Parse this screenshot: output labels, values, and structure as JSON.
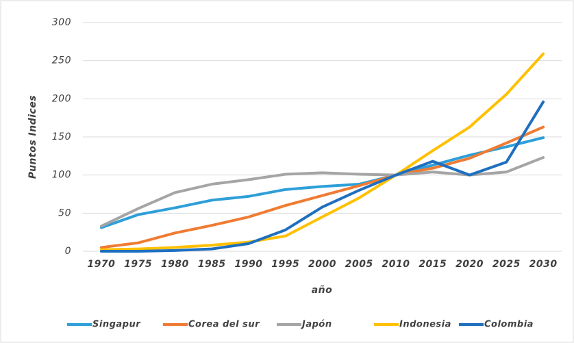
{
  "chart_data": {
    "type": "line",
    "categories": [
      "1970",
      "1975",
      "1980",
      "1985",
      "1990",
      "1995",
      "2000",
      "2005",
      "2010",
      "2015",
      "2020",
      "2025",
      "2030"
    ],
    "series": [
      {
        "name": "Singapur",
        "color": "#2e9fd8",
        "values": [
          31,
          48,
          57,
          67,
          72,
          81,
          85,
          88,
          100,
          113,
          126,
          137,
          149
        ]
      },
      {
        "name": "Corea del sur",
        "color": "#f07b32",
        "values": [
          5,
          11,
          24,
          34,
          45,
          60,
          73,
          86,
          100,
          109,
          122,
          142,
          163
        ]
      },
      {
        "name": "Japón",
        "color": "#a5a5a5",
        "values": [
          33,
          56,
          77,
          88,
          94,
          101,
          103,
          101,
          100,
          104,
          100,
          104,
          123
        ]
      },
      {
        "name": "Indonesia",
        "color": "#ffc000",
        "values": [
          2,
          3,
          5,
          8,
          12,
          20,
          45,
          70,
          100,
          132,
          163,
          206,
          259
        ]
      },
      {
        "name": "Colombia",
        "color": "#1f6fbf",
        "values": [
          0,
          0,
          1,
          3,
          10,
          28,
          58,
          80,
          100,
          118,
          100,
          117,
          196
        ]
      }
    ],
    "ylim": [
      0,
      300
    ],
    "yticks": [
      0,
      50,
      100,
      150,
      200,
      250,
      300
    ],
    "grid": true,
    "xlabel": "año",
    "ylabel": "Puntos Indices",
    "legend": "bottom"
  }
}
